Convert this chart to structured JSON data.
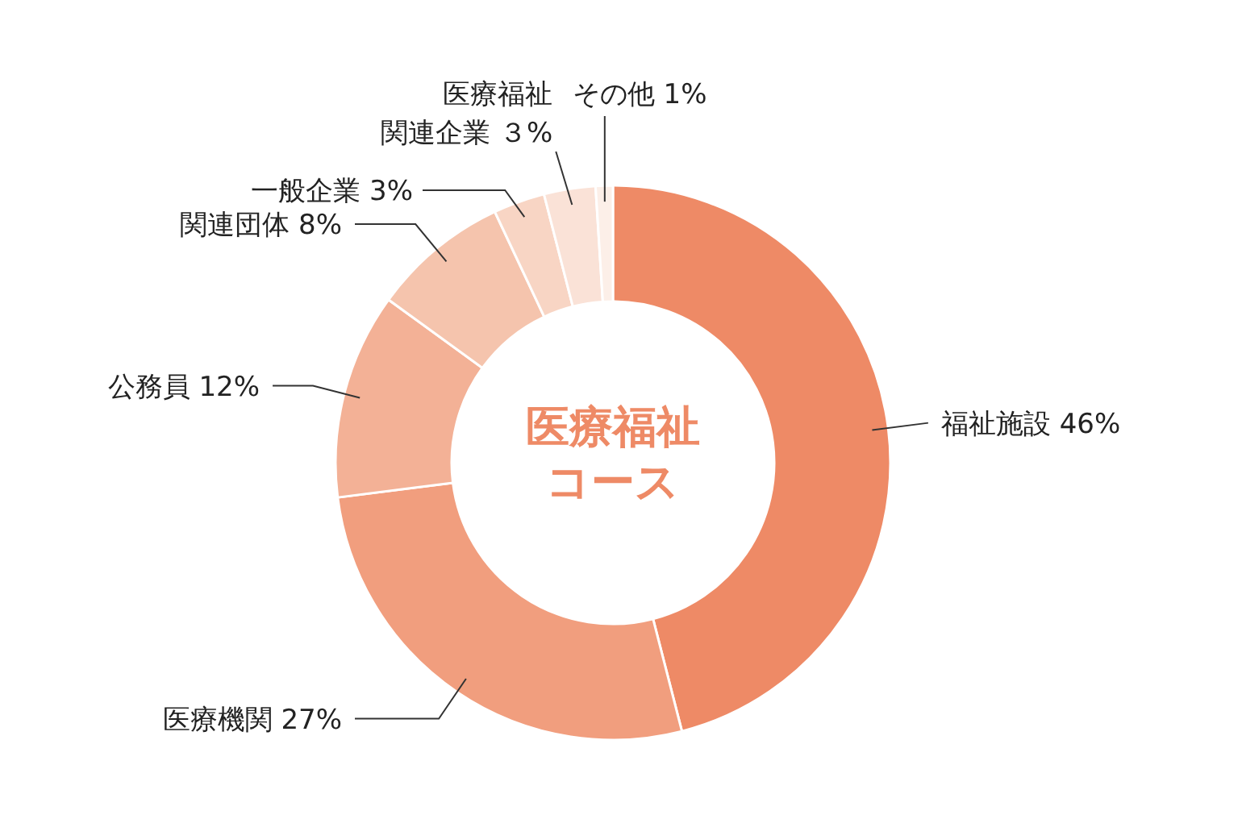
{
  "chart_data": {
    "type": "donut",
    "title": "医療福祉コース",
    "categories": [
      "福祉施設",
      "医療機関",
      "公務員",
      "関連団体",
      "一般企業",
      "医療福祉関連企業",
      "その他"
    ],
    "values": [
      46,
      27,
      12,
      8,
      3,
      3,
      1
    ],
    "value_labels": [
      "46%",
      "27%",
      "12%",
      "8%",
      "3%",
      "３%",
      "1%"
    ],
    "colors": [
      "#ee8a66",
      "#f19e7e",
      "#f3b196",
      "#f5c4ad",
      "#f8d5c4",
      "#fae2d7",
      "#fcefe8"
    ]
  }
}
